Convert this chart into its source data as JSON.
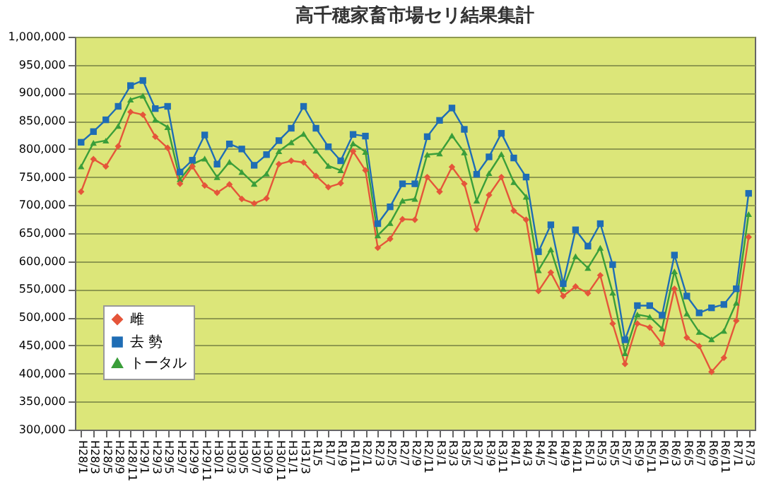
{
  "chart_data": {
    "type": "line",
    "title": "高千穂家畜市場セリ結果集計",
    "categories": [
      "H28/1",
      "H28/3",
      "H28/5",
      "H28/9",
      "H28/11",
      "H29/1",
      "H29/3",
      "H29/5",
      "H29/7",
      "H29/9",
      "H29/11",
      "H30/1",
      "H30/3",
      "H30/5",
      "H30/7",
      "H30/9",
      "H30/11",
      "H31/1",
      "H31/3",
      "R1/5",
      "R1/7",
      "R1/9",
      "R1/11",
      "R2/1",
      "R2/3",
      "R2/5",
      "R2/7",
      "R2/9",
      "R2/11",
      "R3/1",
      "R3/3",
      "R3/5",
      "R3/7",
      "R3/9",
      "R3/11",
      "R4/1",
      "R4/3",
      "R4/5",
      "R4/7",
      "R4/9",
      "R4/11",
      "R5/1",
      "R5/3",
      "R5/5",
      "R5/7",
      "R5/9",
      "R5/11",
      "R6/1",
      "R6/3",
      "R6/5",
      "R6/7",
      "R6/9",
      "R6/11",
      "R7/1",
      "R7/3"
    ],
    "series": [
      {
        "name": "雌",
        "color": "#e5553a",
        "marker": "diamond",
        "values": [
          724000,
          782000,
          769000,
          805000,
          866000,
          861000,
          822000,
          802000,
          738000,
          769000,
          735000,
          722000,
          737000,
          711000,
          703000,
          712000,
          773000,
          779000,
          776000,
          752000,
          732000,
          739000,
          796000,
          762000,
          624000,
          640000,
          675000,
          674000,
          750000,
          724000,
          768000,
          738000,
          657000,
          718000,
          750000,
          690000,
          674000,
          547000,
          580000,
          538000,
          555000,
          543000,
          575000,
          489000,
          417000,
          489000,
          482000,
          453000,
          551000,
          464000,
          449000,
          403000,
          428000,
          494000,
          643000
        ]
      },
      {
        "name": "去 勢",
        "color": "#1f6db5",
        "marker": "square",
        "values": [
          812000,
          831000,
          852000,
          876000,
          913000,
          922000,
          872000,
          876000,
          759000,
          780000,
          825000,
          773000,
          809000,
          800000,
          771000,
          790000,
          815000,
          837000,
          876000,
          837000,
          804000,
          779000,
          826000,
          823000,
          667000,
          697000,
          738000,
          738000,
          822000,
          851000,
          873000,
          835000,
          755000,
          786000,
          828000,
          784000,
          750000,
          617000,
          665000,
          560000,
          656000,
          627000,
          667000,
          594000,
          460000,
          521000,
          521000,
          504000,
          611000,
          538000,
          508000,
          517000,
          523000,
          551000,
          721000
        ]
      },
      {
        "name": "トータル",
        "color": "#3a9e3a",
        "marker": "triangle",
        "values": [
          769000,
          811000,
          815000,
          841000,
          888000,
          895000,
          852000,
          839000,
          746000,
          773000,
          783000,
          750000,
          777000,
          759000,
          738000,
          756000,
          796000,
          812000,
          827000,
          797000,
          770000,
          762000,
          810000,
          795000,
          646000,
          668000,
          708000,
          711000,
          790000,
          792000,
          824000,
          794000,
          708000,
          757000,
          791000,
          741000,
          715000,
          584000,
          621000,
          551000,
          609000,
          588000,
          624000,
          544000,
          436000,
          505000,
          501000,
          480000,
          582000,
          507000,
          474000,
          461000,
          476000,
          526000,
          684000
        ]
      }
    ],
    "ylim": [
      300000,
      1000000
    ],
    "yticks": [
      {
        "value": 300000,
        "label": "300,000"
      },
      {
        "value": 350000,
        "label": "350,000"
      },
      {
        "value": 400000,
        "label": "400,000"
      },
      {
        "value": 450000,
        "label": "450,000"
      },
      {
        "value": 500000,
        "label": "500,000"
      },
      {
        "value": 550000,
        "label": "550,000"
      },
      {
        "value": 600000,
        "label": "600,000"
      },
      {
        "value": 650000,
        "label": "650,000"
      },
      {
        "value": 700000,
        "label": "700,000"
      },
      {
        "value": 750000,
        "label": "750,000"
      },
      {
        "value": 800000,
        "label": "800,000"
      },
      {
        "value": 850000,
        "label": "850,000"
      },
      {
        "value": 900000,
        "label": "900,000"
      },
      {
        "value": 950000,
        "label": "950,000"
      },
      {
        "value": 1000000,
        "label": "1,000,000"
      }
    ],
    "grid": "y",
    "legend": "left",
    "line_style": "solid"
  }
}
